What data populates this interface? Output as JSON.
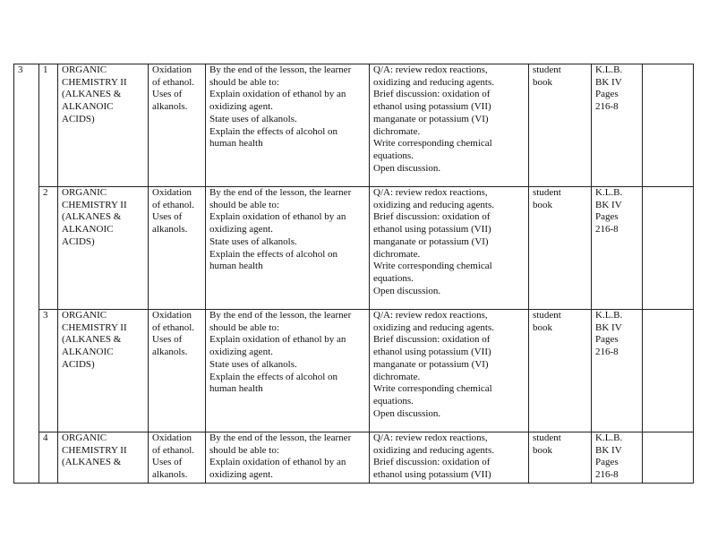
{
  "week": "3",
  "rows": [
    {
      "lesson": "1",
      "topic": "ORGANIC\nCHEMISTRY II\n(ALKANES &\nALKANOIC\nACIDS)",
      "subtopic": "Oxidation\nof ethanol.\nUses of\nalkanols.",
      "objectives": "By the end of the lesson, the learner\nshould be able to:\nExplain oxidation of ethanol by an\noxidizing agent.\nState uses of alkanols.\nExplain the effects of alcohol on\nhuman health",
      "activities": "Q/A: review redox reactions,\noxidizing and reducing agents.\nBrief discussion: oxidation of\nethanol using potassium (VII)\nmanganate or potassium (VI)\ndichromate.\nWrite corresponding chemical\nequations.\nOpen discussion.",
      "resources": "student\nbook",
      "references": "K.L.B.\nBK IV\nPages\n216-8",
      "remarks": ""
    },
    {
      "lesson": "2",
      "topic": "ORGANIC\nCHEMISTRY II\n(ALKANES &\nALKANOIC\nACIDS)",
      "subtopic": "Oxidation\nof ethanol.\nUses of\nalkanols.",
      "objectives": "By the end of the lesson, the learner\nshould be able to:\nExplain oxidation of ethanol by an\noxidizing agent.\nState uses of alkanols.\nExplain the effects of alcohol on\nhuman health",
      "activities": "Q/A: review redox reactions,\noxidizing and reducing agents.\nBrief discussion: oxidation of\nethanol using potassium (VII)\nmanganate or potassium (VI)\ndichromate.\nWrite corresponding chemical\nequations.\nOpen discussion.",
      "resources": "student\nbook",
      "references": "K.L.B.\nBK IV\nPages\n216-8",
      "remarks": ""
    },
    {
      "lesson": "3",
      "topic": "ORGANIC\nCHEMISTRY II\n(ALKANES &\nALKANOIC\nACIDS)",
      "subtopic": "Oxidation\nof ethanol.\nUses of\nalkanols.",
      "objectives": "By the end of the lesson, the learner\nshould be able to:\nExplain oxidation of ethanol by an\noxidizing agent.\nState uses of alkanols.\nExplain the effects of alcohol on\nhuman health",
      "activities": "Q/A: review redox reactions,\noxidizing and reducing agents.\nBrief discussion: oxidation of\nethanol using potassium (VII)\nmanganate or potassium (VI)\ndichromate.\nWrite corresponding chemical\nequations.\nOpen discussion.",
      "resources": "student\nbook",
      "references": "K.L.B.\nBK IV\nPages\n216-8",
      "remarks": ""
    },
    {
      "lesson": "4",
      "topic": "ORGANIC\nCHEMISTRY II\n(ALKANES &",
      "subtopic": "Oxidation\nof ethanol.\nUses of\nalkanols.",
      "objectives": "By the end of the lesson, the learner\nshould be able to:\nExplain oxidation of ethanol by an\noxidizing agent.",
      "activities": "Q/A: review redox reactions,\noxidizing and reducing agents.\nBrief discussion: oxidation of\nethanol using potassium (VII)",
      "resources": "student\nbook",
      "references": "K.L.B.\nBK IV\nPages\n216-8",
      "remarks": ""
    }
  ]
}
